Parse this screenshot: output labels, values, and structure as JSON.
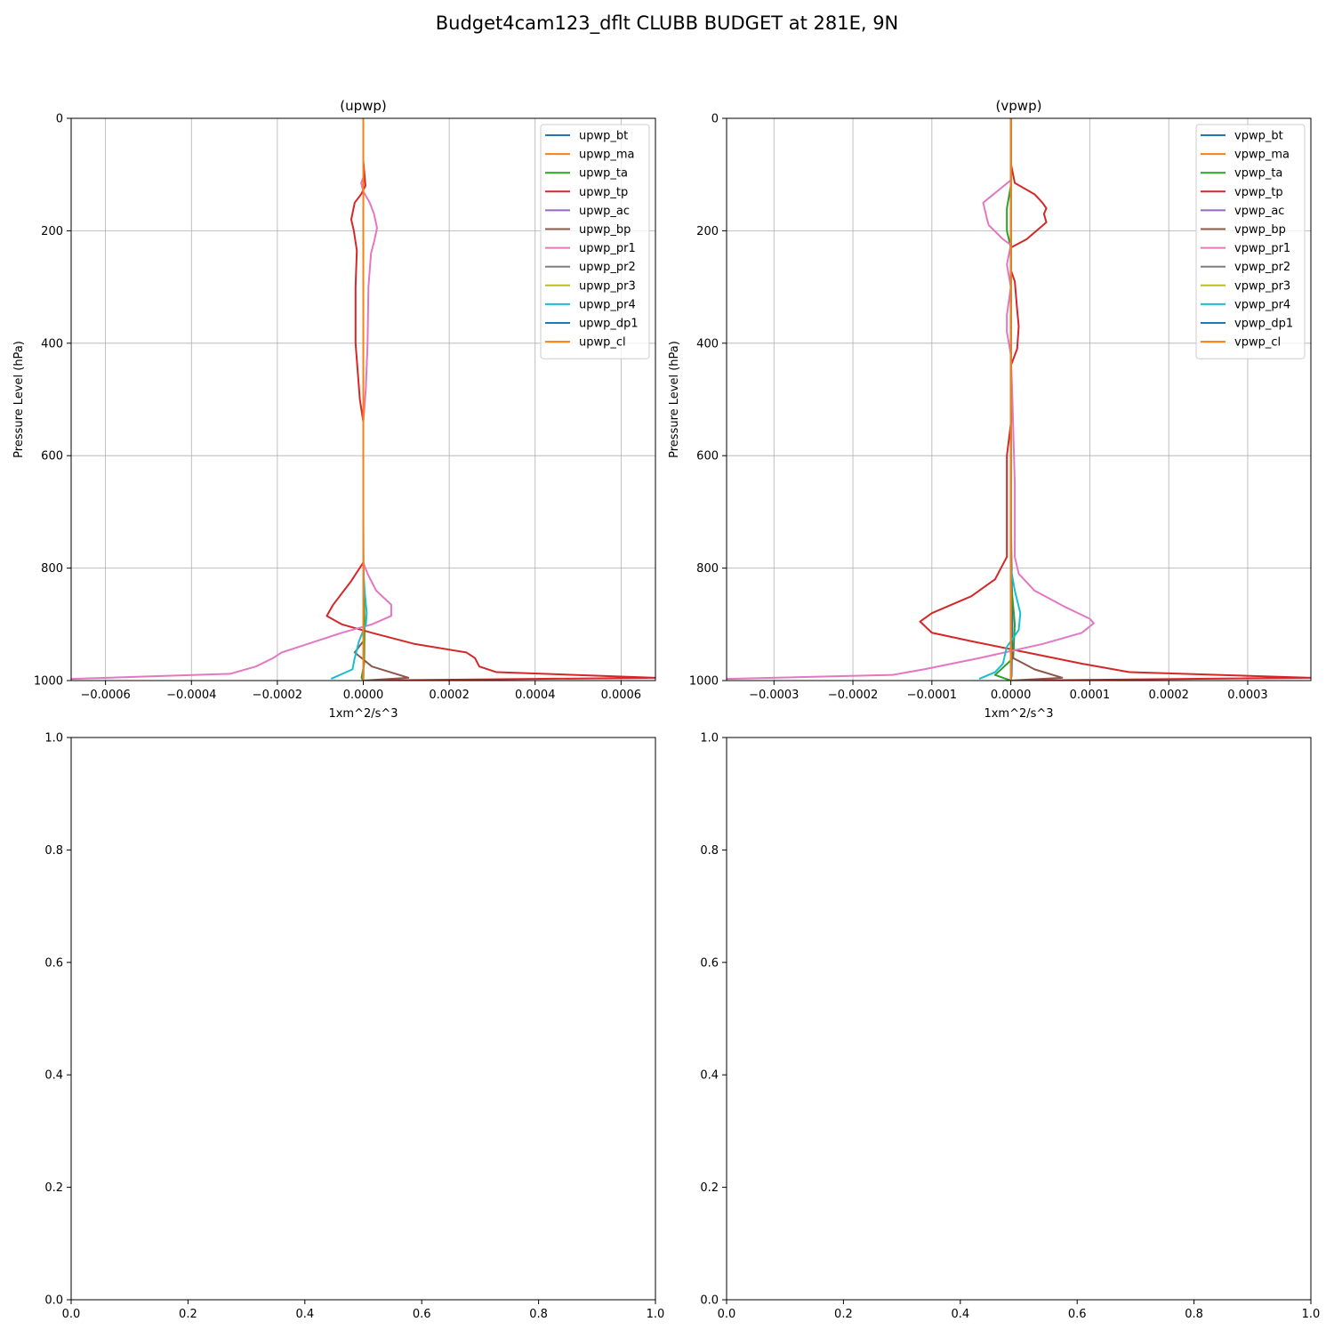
{
  "figure": {
    "title": "Budget4cam123_dflt CLUBB BUDGET at 281E, 9N"
  },
  "colors": {
    "C0": "#1f77b4",
    "C1": "#ff7f0e",
    "C2": "#2ca02c",
    "C3": "#d62728",
    "C4": "#9467bd",
    "C5": "#8c564b",
    "C6": "#e377c2",
    "C7": "#7f7f7f",
    "C8": "#bcbd22",
    "C9": "#17becf"
  },
  "chart_data": [
    {
      "type": "line",
      "title": "(upwp)",
      "xlabel": "1xm^2/s^3",
      "ylabel": "Pressure Level (hPa)",
      "xlim": [
        -0.00068,
        0.00068
      ],
      "ylim": [
        1000,
        0
      ],
      "xticks": [
        -0.0006,
        -0.0004,
        -0.0002,
        0.0,
        0.0002,
        0.0004,
        0.0006
      ],
      "xtick_labels": [
        "−0.0006",
        "−0.0004",
        "−0.0002",
        "0.0000",
        "0.0002",
        "0.0004",
        "0.0006"
      ],
      "yticks": [
        0,
        200,
        400,
        600,
        800,
        1000
      ],
      "ytick_labels": [
        "0",
        "200",
        "400",
        "600",
        "800",
        "1000"
      ],
      "grid": true,
      "legend": "top-right",
      "series": [
        {
          "name": "upwp_bt",
          "color": "#1f77b4",
          "points": [
            [
              0,
              0
            ],
            [
              0,
              700
            ],
            [
              1e-06,
              900
            ],
            [
              5e-07,
              990
            ],
            [
              0,
              1000
            ]
          ]
        },
        {
          "name": "upwp_ma",
          "color": "#ff7f0e",
          "points": [
            [
              0,
              0
            ],
            [
              0,
              1000
            ]
          ]
        },
        {
          "name": "upwp_ta",
          "color": "#2ca02c",
          "points": [
            [
              0,
              0
            ],
            [
              0,
              800
            ],
            [
              3e-06,
              900
            ],
            [
              2e-06,
              970
            ],
            [
              -4e-06,
              995
            ],
            [
              0,
              1000
            ]
          ]
        },
        {
          "name": "upwp_tp",
          "color": "#d62728",
          "points": [
            [
              0,
              0
            ],
            [
              0,
              75
            ],
            [
              5e-06,
              120
            ],
            [
              -5e-06,
              135
            ],
            [
              -2e-05,
              150
            ],
            [
              -2.8e-05,
              180
            ],
            [
              -2.2e-05,
              200
            ],
            [
              -1.5e-05,
              235
            ],
            [
              -1.8e-05,
              300
            ],
            [
              -1.8e-05,
              400
            ],
            [
              -8e-06,
              500
            ],
            [
              0,
              540
            ],
            [
              0,
              790
            ],
            [
              -3e-05,
              825
            ],
            [
              -7e-05,
              865
            ],
            [
              -8.5e-05,
              885
            ],
            [
              -5e-05,
              900
            ],
            [
              2e-05,
              915
            ],
            [
              0.00012,
              935
            ],
            [
              0.00024,
              950
            ],
            [
              0.00026,
              960
            ],
            [
              0.00027,
              975
            ],
            [
              0.00031,
              985
            ],
            [
              0.00068,
              995
            ],
            [
              0,
              1000
            ]
          ]
        },
        {
          "name": "upwp_ac",
          "color": "#9467bd",
          "points": [
            [
              0,
              0
            ],
            [
              0,
              1000
            ]
          ]
        },
        {
          "name": "upwp_bp",
          "color": "#8c564b",
          "points": [
            [
              0,
              0
            ],
            [
              0,
              930
            ],
            [
              -2e-05,
              950
            ],
            [
              2e-05,
              975
            ],
            [
              0.000105,
              995
            ],
            [
              0,
              1000
            ]
          ]
        },
        {
          "name": "upwp_pr1",
          "color": "#e377c2",
          "points": [
            [
              0,
              0
            ],
            [
              0,
              105
            ],
            [
              -5e-06,
              115
            ],
            [
              0,
              130
            ],
            [
              1.5e-05,
              150
            ],
            [
              2.5e-05,
              170
            ],
            [
              3.2e-05,
              195
            ],
            [
              2.5e-05,
              220
            ],
            [
              1.8e-05,
              240
            ],
            [
              1.2e-05,
              300
            ],
            [
              1e-05,
              400
            ],
            [
              6e-06,
              480
            ],
            [
              0,
              540
            ],
            [
              0,
              790
            ],
            [
              1e-05,
              810
            ],
            [
              3e-05,
              840
            ],
            [
              6.5e-05,
              865
            ],
            [
              6.5e-05,
              885
            ],
            [
              2e-05,
              900
            ],
            [
              -5e-05,
              915
            ],
            [
              -0.00013,
              935
            ],
            [
              -0.00019,
              950
            ],
            [
              -0.00021,
              960
            ],
            [
              -0.00025,
              975
            ],
            [
              -0.00031,
              988
            ],
            [
              -0.00068,
              997
            ]
          ]
        },
        {
          "name": "upwp_pr2",
          "color": "#7f7f7f",
          "points": [
            [
              0,
              0
            ],
            [
              0,
              1000
            ]
          ]
        },
        {
          "name": "upwp_pr3",
          "color": "#bcbd22",
          "points": [
            [
              0,
              0
            ],
            [
              0,
              1000
            ]
          ]
        },
        {
          "name": "upwp_pr4",
          "color": "#17becf",
          "points": [
            [
              0,
              0
            ],
            [
              0,
              800
            ],
            [
              3e-06,
              840
            ],
            [
              8e-06,
              880
            ],
            [
              6e-06,
              900
            ],
            [
              -1e-05,
              930
            ],
            [
              -2e-05,
              960
            ],
            [
              -2.5e-05,
              980
            ],
            [
              -7.5e-05,
              997
            ]
          ]
        },
        {
          "name": "upwp_dp1",
          "color": "#1f77b4",
          "points": [
            [
              0,
              0
            ],
            [
              0,
              1000
            ]
          ]
        },
        {
          "name": "upwp_cl",
          "color": "#ff7f0e",
          "points": [
            [
              0,
              0
            ],
            [
              0,
              1000
            ]
          ]
        }
      ]
    },
    {
      "type": "line",
      "title": "(vpwp)",
      "xlabel": "1xm^2/s^3",
      "ylabel": "Pressure Level (hPa)",
      "xlim": [
        -0.00036,
        0.00038
      ],
      "ylim": [
        1000,
        0
      ],
      "xticks": [
        -0.0003,
        -0.0002,
        -0.0001,
        0.0,
        0.0001,
        0.0002,
        0.0003
      ],
      "xtick_labels": [
        "−0.0003",
        "−0.0002",
        "−0.0001",
        "0.0000",
        "0.0001",
        "0.0002",
        "0.0003"
      ],
      "yticks": [
        0,
        200,
        400,
        600,
        800,
        1000
      ],
      "ytick_labels": [
        "0",
        "200",
        "400",
        "600",
        "800",
        "1000"
      ],
      "grid": true,
      "legend": "top-right",
      "series": [
        {
          "name": "vpwp_bt",
          "color": "#1f77b4",
          "points": [
            [
              0,
              0
            ],
            [
              0,
              700
            ],
            [
              2e-06,
              900
            ],
            [
              1e-06,
              990
            ],
            [
              0,
              1000
            ]
          ]
        },
        {
          "name": "vpwp_ma",
          "color": "#ff7f0e",
          "points": [
            [
              0,
              0
            ],
            [
              0,
              1000
            ]
          ]
        },
        {
          "name": "vpwp_ta",
          "color": "#2ca02c",
          "points": [
            [
              0,
              0
            ],
            [
              0,
              120
            ],
            [
              -5e-06,
              160
            ],
            [
              -5e-06,
              200
            ],
            [
              0,
              230
            ],
            [
              0,
              820
            ],
            [
              5e-06,
              900
            ],
            [
              3e-06,
              960
            ],
            [
              -2e-05,
              990
            ],
            [
              0,
              1000
            ]
          ]
        },
        {
          "name": "vpwp_tp",
          "color": "#d62728",
          "points": [
            [
              0,
              0
            ],
            [
              0,
              80
            ],
            [
              5e-06,
              115
            ],
            [
              3e-05,
              135
            ],
            [
              4e-05,
              150
            ],
            [
              4.5e-05,
              160
            ],
            [
              4.2e-05,
              170
            ],
            [
              4.5e-05,
              185
            ],
            [
              2e-05,
              215
            ],
            [
              0,
              230
            ],
            [
              0,
              270
            ],
            [
              5e-06,
              290
            ],
            [
              8e-06,
              340
            ],
            [
              1e-05,
              370
            ],
            [
              8e-06,
              410
            ],
            [
              0,
              440
            ],
            [
              2e-06,
              520
            ],
            [
              -5e-06,
              600
            ],
            [
              -5e-06,
              780
            ],
            [
              -2e-05,
              820
            ],
            [
              -5e-05,
              850
            ],
            [
              -0.0001,
              880
            ],
            [
              -0.000115,
              895
            ],
            [
              -0.0001,
              915
            ],
            [
              -5e-05,
              930
            ],
            [
              2e-05,
              950
            ],
            [
              9e-05,
              970
            ],
            [
              0.00015,
              985
            ],
            [
              0.00038,
              995
            ],
            [
              0,
              1000
            ]
          ]
        },
        {
          "name": "vpwp_ac",
          "color": "#9467bd",
          "points": [
            [
              0,
              0
            ],
            [
              0,
              1000
            ]
          ]
        },
        {
          "name": "vpwp_bp",
          "color": "#8c564b",
          "points": [
            [
              0,
              0
            ],
            [
              0,
              940
            ],
            [
              3e-06,
              960
            ],
            [
              3e-05,
              980
            ],
            [
              6.5e-05,
              995
            ],
            [
              0,
              1000
            ]
          ]
        },
        {
          "name": "vpwp_pr1",
          "color": "#e377c2",
          "points": [
            [
              0,
              0
            ],
            [
              0,
              110
            ],
            [
              -3.5e-05,
              150
            ],
            [
              -3e-05,
              180
            ],
            [
              -2.8e-05,
              190
            ],
            [
              -1e-05,
              215
            ],
            [
              0,
              225
            ],
            [
              -5e-06,
              260
            ],
            [
              0,
              300
            ],
            [
              -5e-06,
              350
            ],
            [
              -5e-06,
              380
            ],
            [
              0,
              420
            ],
            [
              2e-06,
              500
            ],
            [
              5e-06,
              650
            ],
            [
              5e-06,
              780
            ],
            [
              1e-05,
              810
            ],
            [
              3e-05,
              840
            ],
            [
              7e-05,
              870
            ],
            [
              0.0001,
              890
            ],
            [
              0.000105,
              898
            ],
            [
              9e-05,
              915
            ],
            [
              4e-05,
              935
            ],
            [
              -4e-05,
              960
            ],
            [
              -0.00011,
              980
            ],
            [
              -0.00015,
              990
            ],
            [
              -0.00036,
              997
            ]
          ]
        },
        {
          "name": "vpwp_pr2",
          "color": "#7f7f7f",
          "points": [
            [
              0,
              0
            ],
            [
              0,
              1000
            ]
          ]
        },
        {
          "name": "vpwp_pr3",
          "color": "#bcbd22",
          "points": [
            [
              0,
              0
            ],
            [
              0,
              1000
            ]
          ]
        },
        {
          "name": "vpwp_pr4",
          "color": "#17becf",
          "points": [
            [
              0,
              0
            ],
            [
              0,
              800
            ],
            [
              5e-06,
              840
            ],
            [
              1.2e-05,
              880
            ],
            [
              1e-05,
              910
            ],
            [
              -5e-06,
              940
            ],
            [
              -1e-05,
              970
            ],
            [
              -2e-05,
              985
            ],
            [
              -4e-05,
              997
            ]
          ]
        },
        {
          "name": "vpwp_dp1",
          "color": "#1f77b4",
          "points": [
            [
              0,
              0
            ],
            [
              0,
              1000
            ]
          ]
        },
        {
          "name": "vpwp_cl",
          "color": "#ff7f0e",
          "points": [
            [
              0,
              0
            ],
            [
              0,
              1000
            ]
          ]
        }
      ]
    },
    {
      "type": "line",
      "title": "",
      "xlim": [
        0,
        1
      ],
      "ylim": [
        0,
        1
      ],
      "xticks": [
        0,
        0.2,
        0.4,
        0.6,
        0.8,
        1
      ],
      "xtick_labels": [
        "0.0",
        "0.2",
        "0.4",
        "0.6",
        "0.8",
        "1.0"
      ],
      "yticks": [
        0,
        0.2,
        0.4,
        0.6,
        0.8,
        1
      ],
      "ytick_labels": [
        "0.0",
        "0.2",
        "0.4",
        "0.6",
        "0.8",
        "1.0"
      ],
      "grid": false,
      "series": []
    },
    {
      "type": "line",
      "title": "",
      "xlim": [
        0,
        1
      ],
      "ylim": [
        0,
        1
      ],
      "xticks": [
        0,
        0.2,
        0.4,
        0.6,
        0.8,
        1
      ],
      "xtick_labels": [
        "0.0",
        "0.2",
        "0.4",
        "0.6",
        "0.8",
        "1.0"
      ],
      "yticks": [
        0,
        0.2,
        0.4,
        0.6,
        0.8,
        1
      ],
      "ytick_labels": [
        "0.0",
        "0.2",
        "0.4",
        "0.6",
        "0.8",
        "1.0"
      ],
      "grid": false,
      "series": []
    }
  ]
}
